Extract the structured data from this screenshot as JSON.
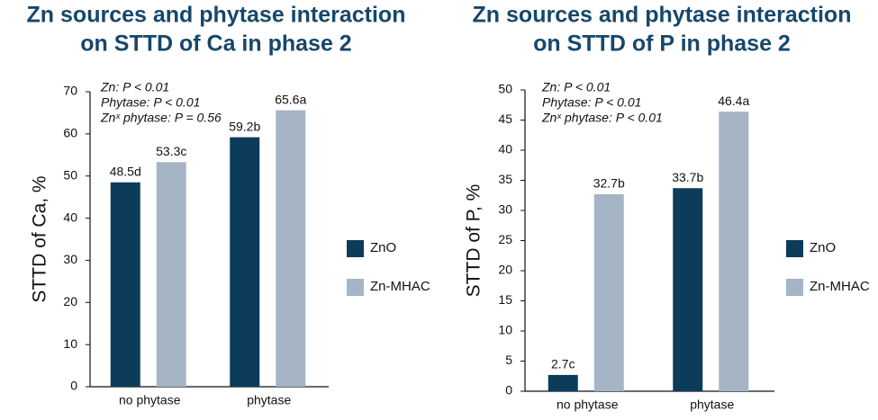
{
  "chart_data": [
    {
      "type": "bar",
      "title": [
        "Zn sources and phytase interaction",
        "on STTD of Ca in phase 2"
      ],
      "y_label": "STTD of Ca, %",
      "annotations": [
        "Zn: P < 0.01",
        "Phytase: P < 0.01",
        "Znˣ phytase: P = 0.56"
      ],
      "categories": [
        "no phytase",
        "phytase"
      ],
      "series": [
        {
          "name": "ZnO",
          "color": "#0d3b5a",
          "values": [
            48.5,
            59.2
          ],
          "value_labels": [
            "48.5d",
            "59.2b"
          ]
        },
        {
          "name": "Zn-MHAC",
          "color": "#a5b5c5",
          "values": [
            53.3,
            65.6
          ],
          "value_labels": [
            "53.3c",
            "65.6a"
          ]
        }
      ],
      "ylim": [
        0,
        70
      ],
      "yticks": [
        0,
        10,
        20,
        30,
        40,
        50,
        60,
        70
      ],
      "legend": "right"
    },
    {
      "type": "bar",
      "title": [
        "Zn sources and phytase interaction",
        "on STTD of P in phase 2"
      ],
      "y_label": "STTD of P, %",
      "annotations": [
        "Zn: P < 0.01",
        "Phytase: P < 0.01",
        "Znˣ phytase: P < 0.01"
      ],
      "categories": [
        "no phytase",
        "phytase"
      ],
      "series": [
        {
          "name": "ZnO",
          "color": "#0d3b5a",
          "values": [
            2.7,
            33.7
          ],
          "value_labels": [
            "2.7c",
            "33.7b"
          ]
        },
        {
          "name": "Zn-MHAC",
          "color": "#a5b5c5",
          "values": [
            32.7,
            46.4
          ],
          "value_labels": [
            "32.7b",
            "46.4a"
          ]
        }
      ],
      "ylim": [
        0,
        50
      ],
      "yticks": [
        0,
        5,
        10,
        15,
        20,
        25,
        30,
        35,
        40,
        45,
        50
      ],
      "legend": "right"
    }
  ]
}
